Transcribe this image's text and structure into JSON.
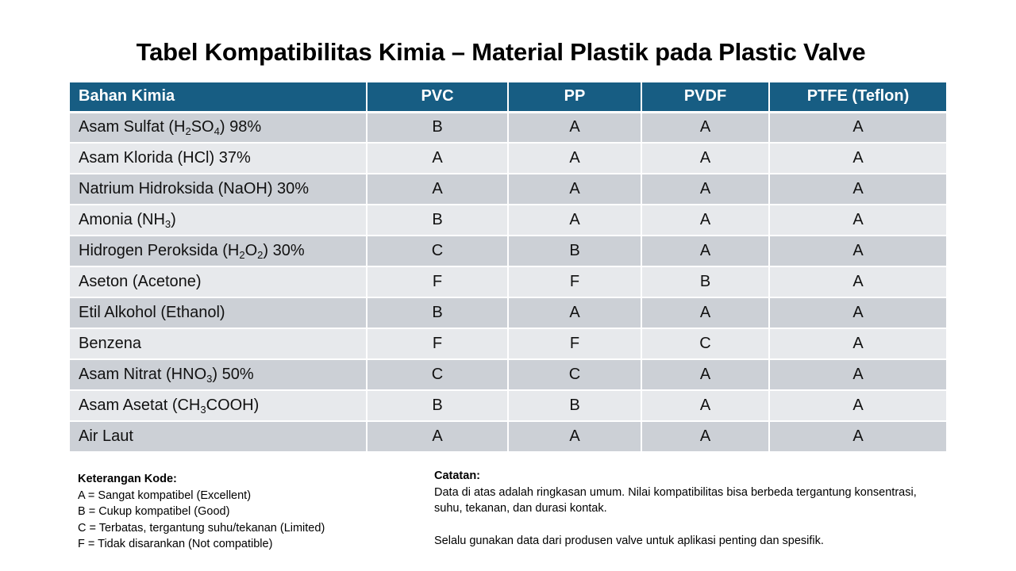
{
  "title": "Tabel Kompatibilitas Kimia – Material Plastik pada Plastic Valve",
  "colors": {
    "header_bg": "#175d83",
    "row_odd": "#ccd0d6",
    "row_even": "#e7e9ec"
  },
  "table": {
    "headers": [
      "Bahan Kimia",
      "PVC",
      "PP",
      "PVDF",
      "PTFE (Teflon)"
    ],
    "rows": [
      {
        "chemical": [
          [
            "Asam Sulfat (H"
          ],
          [
            "2",
            "sub"
          ],
          [
            "SO"
          ],
          [
            "4",
            "sub"
          ],
          [
            ") 98%"
          ]
        ],
        "values": [
          "B",
          "A",
          "A",
          "A"
        ]
      },
      {
        "chemical": [
          [
            "Asam Klorida (HCl) 37%"
          ]
        ],
        "values": [
          "A",
          "A",
          "A",
          "A"
        ]
      },
      {
        "chemical": [
          [
            "Natrium Hidroksida (NaOH) 30%"
          ]
        ],
        "values": [
          "A",
          "A",
          "A",
          "A"
        ]
      },
      {
        "chemical": [
          [
            "Amonia (NH"
          ],
          [
            "3",
            "sub"
          ],
          [
            ")"
          ]
        ],
        "values": [
          "B",
          "A",
          "A",
          "A"
        ]
      },
      {
        "chemical": [
          [
            "Hidrogen Peroksida (H"
          ],
          [
            "2",
            "sub"
          ],
          [
            "O"
          ],
          [
            "2",
            "sub"
          ],
          [
            ") 30%"
          ]
        ],
        "values": [
          "C",
          "B",
          "A",
          "A"
        ]
      },
      {
        "chemical": [
          [
            "Aseton (Acetone)"
          ]
        ],
        "values": [
          "F",
          "F",
          "B",
          "A"
        ]
      },
      {
        "chemical": [
          [
            "Etil Alkohol (Ethanol)"
          ]
        ],
        "values": [
          "B",
          "A",
          "A",
          "A"
        ]
      },
      {
        "chemical": [
          [
            "Benzena"
          ]
        ],
        "values": [
          "F",
          "F",
          "C",
          "A"
        ]
      },
      {
        "chemical": [
          [
            "Asam Nitrat (HNO"
          ],
          [
            "3",
            "sub"
          ],
          [
            ") 50%"
          ]
        ],
        "values": [
          "C",
          "C",
          "A",
          "A"
        ]
      },
      {
        "chemical": [
          [
            "Asam Asetat (CH"
          ],
          [
            "3",
            "sub"
          ],
          [
            "COOH)"
          ]
        ],
        "values": [
          "B",
          "B",
          "A",
          "A"
        ]
      },
      {
        "chemical": [
          [
            "Air Laut"
          ]
        ],
        "values": [
          "A",
          "A",
          "A",
          "A"
        ]
      }
    ]
  },
  "legend": {
    "heading": "Keterangan Kode:",
    "items": [
      "A = Sangat kompatibel (Excellent)",
      "B = Cukup kompatibel (Good)",
      "C = Terbatas, tergantung suhu/tekanan (Limited)",
      "F = Tidak disarankan (Not compatible)"
    ]
  },
  "notes": {
    "heading": "Catatan:",
    "paragraph1": "Data di atas adalah ringkasan umum. Nilai kompatibilitas bisa berbeda tergantung konsentrasi, suhu, tekanan, dan durasi kontak.",
    "paragraph2": "Selalu gunakan data dari produsen valve untuk aplikasi penting dan spesifik."
  }
}
